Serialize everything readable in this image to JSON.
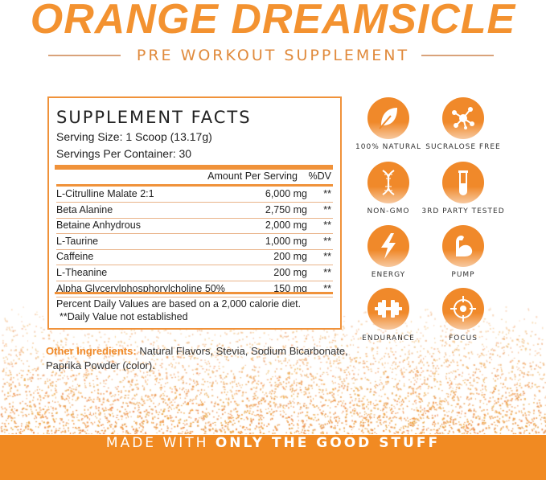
{
  "header": {
    "title": "ORANGE DREAMSICLE",
    "subtitle": "PRE WORKOUT SUPPLEMENT"
  },
  "facts": {
    "heading": "SUPPLEMENT FACTS",
    "serving_size": "Serving Size: 1 Scoop (13.17g)",
    "servings": "Servings Per Container: 30",
    "col_amount": "Amount Per Serving",
    "col_dv": "%DV",
    "rows": [
      {
        "name": "L-Citrulline Malate 2:1",
        "amount": "6,000 mg",
        "dv": "**"
      },
      {
        "name": "Beta Alanine",
        "amount": "2,750 mg",
        "dv": "**"
      },
      {
        "name": "Betaine Anhydrous",
        "amount": "2,000 mg",
        "dv": "**"
      },
      {
        "name": "L-Taurine",
        "amount": "1,000 mg",
        "dv": "**"
      },
      {
        "name": "Caffeine",
        "amount": "200 mg",
        "dv": "**"
      },
      {
        "name": "L-Theanine",
        "amount": "200 mg",
        "dv": "**"
      },
      {
        "name": "Alpha Glycerylphosphorylcholine 50%",
        "amount": "150 mg",
        "dv": "**"
      }
    ],
    "note1": "Percent Daily Values are based on a 2,000 calorie diet.",
    "note2": "**Daily Value not established"
  },
  "badges": [
    {
      "label": "100% NATURAL",
      "icon": "leaf-icon"
    },
    {
      "label": "SUCRALOSE FREE",
      "icon": "molecule-icon"
    },
    {
      "label": "NON-GMO",
      "icon": "dna-icon"
    },
    {
      "label": "3RD PARTY TESTED",
      "icon": "test-tube-icon"
    },
    {
      "label": "ENERGY",
      "icon": "lightning-icon"
    },
    {
      "label": "PUMP",
      "icon": "flexed-arm-icon"
    },
    {
      "label": "ENDURANCE",
      "icon": "dumbbell-icon"
    },
    {
      "label": "FOCUS",
      "icon": "crosshair-icon"
    }
  ],
  "other": {
    "label": "Other Ingredients:",
    "text": "Natural Flavors, Stevia, Sodium Bicarbonate, Paprika Powder (color)."
  },
  "banner": {
    "prefix": "MADE WITH ",
    "emphasis": "ONLY THE GOOD STUFF"
  },
  "colors": {
    "brand": "#f18a22"
  }
}
